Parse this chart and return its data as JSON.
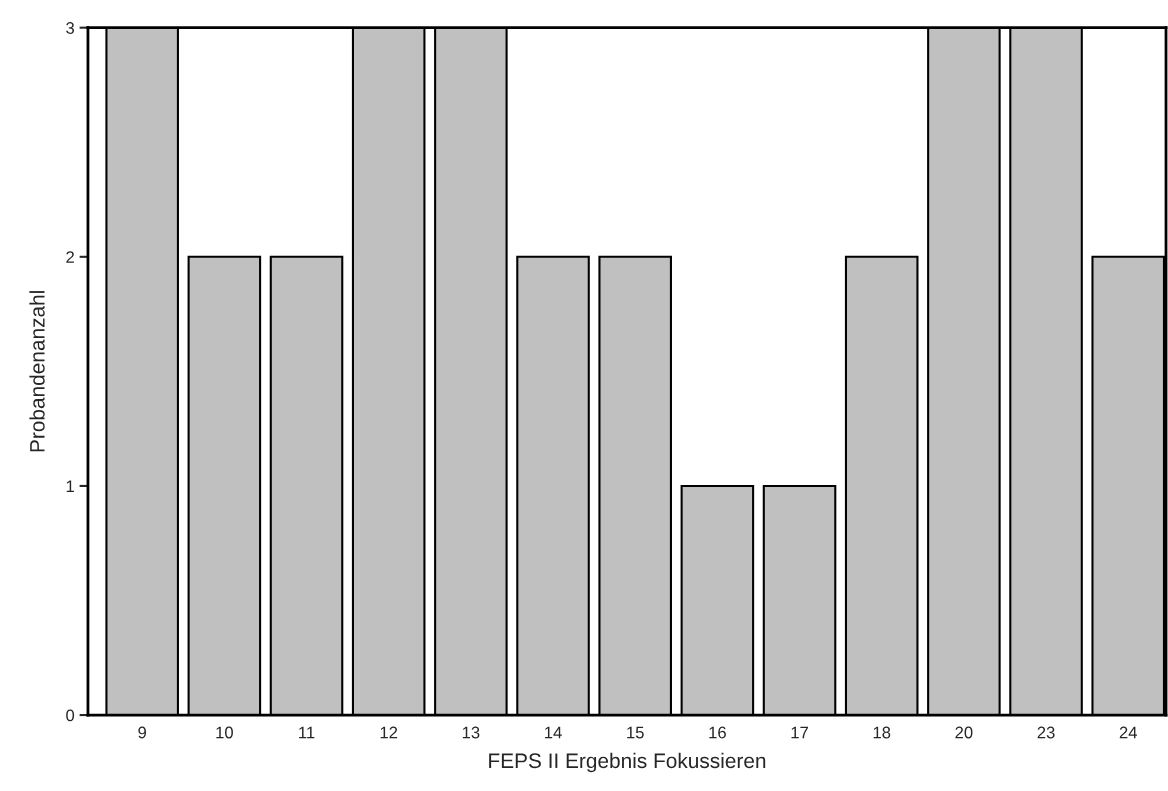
{
  "chart_data": {
    "type": "bar",
    "xlabel": "FEPS II Ergebnis Fokussieren",
    "ylabel": "Probandenanzahl",
    "categories": [
      "9",
      "10",
      "11",
      "12",
      "13",
      "14",
      "15",
      "16",
      "17",
      "18",
      "20",
      "23",
      "24"
    ],
    "values": [
      3,
      2,
      2,
      3,
      3,
      2,
      2,
      1,
      1,
      2,
      3,
      3,
      2
    ],
    "color": "#c0c0c0",
    "ylim": [
      0,
      3
    ],
    "yticks": [
      0,
      1,
      2,
      3
    ],
    "grid": false
  }
}
